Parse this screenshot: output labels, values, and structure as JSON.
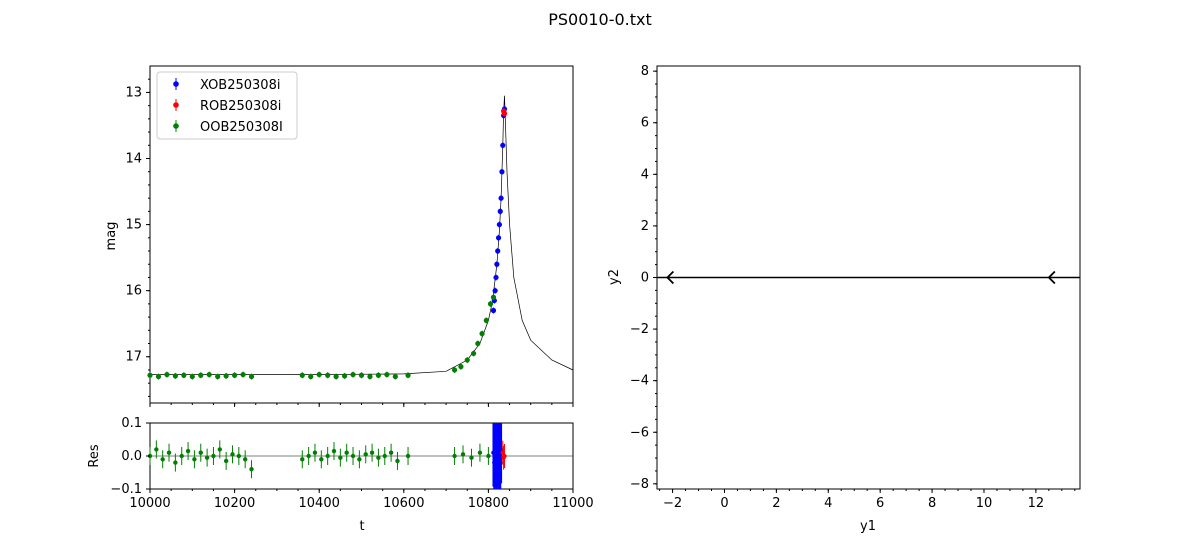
{
  "figure": {
    "title": "PS0010-0.txt"
  },
  "chart_data": [
    {
      "type": "scatter",
      "panel": "light-curve",
      "xlabel": "",
      "ylabel": "mag",
      "xlim": [
        10000,
        11000
      ],
      "ylim": [
        17.7,
        12.6
      ],
      "y_inverted": true,
      "yticks": [
        13,
        14,
        15,
        16,
        17
      ],
      "legend_position": "top-left",
      "legend": [
        "XOB250308i",
        "ROB250308i",
        "OOB250308I"
      ],
      "series": [
        {
          "name": "XOB250308i",
          "color": "#0000ff",
          "x": [
            10812,
            10814,
            10816,
            10818,
            10820,
            10822,
            10824,
            10826,
            10828,
            10830,
            10832,
            10834,
            10836,
            10838
          ],
          "y": [
            16.3,
            16.15,
            16.0,
            15.8,
            15.6,
            15.4,
            15.2,
            15.0,
            14.8,
            14.6,
            14.2,
            13.8,
            13.35,
            13.25
          ]
        },
        {
          "name": "ROB250308i",
          "color": "#ff0000",
          "x": [
            10836,
            10837,
            10838
          ],
          "y": [
            13.28,
            13.3,
            13.32
          ]
        },
        {
          "name": "OOB250308I",
          "color": "#008000",
          "x": [
            10000,
            10020,
            10040,
            10060,
            10080,
            10100,
            10120,
            10140,
            10160,
            10180,
            10200,
            10220,
            10240,
            10360,
            10380,
            10400,
            10420,
            10440,
            10460,
            10480,
            10500,
            10520,
            10540,
            10560,
            10580,
            10610,
            10720,
            10735,
            10750,
            10765,
            10775,
            10785,
            10795,
            10805,
            10812
          ],
          "y": [
            17.28,
            17.3,
            17.27,
            17.29,
            17.28,
            17.3,
            17.28,
            17.27,
            17.3,
            17.29,
            17.28,
            17.27,
            17.3,
            17.28,
            17.3,
            17.27,
            17.28,
            17.3,
            17.29,
            17.27,
            17.28,
            17.3,
            17.28,
            17.27,
            17.3,
            17.28,
            17.2,
            17.15,
            17.05,
            16.95,
            16.8,
            16.65,
            16.45,
            16.2,
            16.1
          ]
        }
      ],
      "model": {
        "x": [
          10000,
          10200,
          10400,
          10600,
          10700,
          10750,
          10780,
          10800,
          10810,
          10820,
          10826,
          10830,
          10834,
          10836,
          10838,
          10840,
          10844,
          10850,
          10860,
          10880,
          10900,
          10950,
          11000
        ],
        "y": [
          17.27,
          17.27,
          17.27,
          17.26,
          17.22,
          17.05,
          16.8,
          16.45,
          16.15,
          15.6,
          15.1,
          14.6,
          13.8,
          13.3,
          13.05,
          13.4,
          14.2,
          15.0,
          15.8,
          16.45,
          16.75,
          17.05,
          17.2
        ]
      }
    },
    {
      "type": "scatter",
      "panel": "residuals",
      "xlabel": "t",
      "ylabel": "Res",
      "xlim": [
        10000,
        11000
      ],
      "ylim": [
        -0.1,
        0.1
      ],
      "xticks": [
        10000,
        10200,
        10400,
        10600,
        10800,
        11000
      ],
      "yticks": [
        -0.1,
        0.0,
        0.1
      ],
      "series": [
        {
          "name": "XOB250308i",
          "color": "#0000ff",
          "x": [
            10812,
            10814,
            10816,
            10818,
            10820,
            10822,
            10824,
            10826,
            10828,
            10830
          ],
          "y": [
            0.01,
            -0.02,
            0.03,
            -0.01,
            0.0,
            0.02,
            -0.03,
            0.01,
            -0.02,
            0.02
          ]
        },
        {
          "name": "ROB250308i",
          "color": "#ff0000",
          "x": [
            10834,
            10836,
            10838
          ],
          "y": [
            0.01,
            -0.005,
            0.0
          ]
        },
        {
          "name": "OOB250308I",
          "color": "#008000",
          "x": [
            10000,
            10015,
            10030,
            10045,
            10060,
            10075,
            10090,
            10105,
            10120,
            10135,
            10150,
            10165,
            10180,
            10195,
            10210,
            10225,
            10240,
            10360,
            10375,
            10390,
            10405,
            10420,
            10435,
            10450,
            10465,
            10480,
            10495,
            10510,
            10525,
            10540,
            10555,
            10570,
            10585,
            10610,
            10720,
            10740,
            10760,
            10780,
            10800
          ],
          "y": [
            0.0,
            0.02,
            -0.01,
            0.01,
            -0.02,
            0.0,
            0.015,
            -0.01,
            0.01,
            -0.005,
            0.0,
            0.02,
            -0.015,
            0.005,
            0.0,
            -0.01,
            -0.04,
            -0.01,
            0.0,
            0.01,
            -0.01,
            0.0,
            0.015,
            -0.005,
            0.01,
            0.0,
            -0.01,
            0.005,
            0.01,
            -0.005,
            0.0,
            0.01,
            -0.015,
            0.0,
            0.0,
            0.005,
            -0.005,
            0.01,
            0.0
          ]
        }
      ]
    },
    {
      "type": "line",
      "panel": "trajectory",
      "xlabel": "y1",
      "ylabel": "y2",
      "xlim": [
        -2.6,
        13.7
      ],
      "ylim": [
        -8.2,
        8.2
      ],
      "xticks": [
        -2,
        0,
        2,
        4,
        6,
        8,
        10,
        12
      ],
      "yticks": [
        -8,
        -6,
        -4,
        -2,
        0,
        2,
        4,
        6,
        8
      ],
      "lines": [
        {
          "x": [
            -2.6,
            13.7
          ],
          "y": [
            0,
            0
          ],
          "color": "#000000"
        }
      ],
      "arrows": [
        {
          "x": -2.2,
          "y": 0,
          "direction": "left"
        },
        {
          "x": 12.5,
          "y": 0,
          "direction": "left"
        }
      ]
    }
  ]
}
